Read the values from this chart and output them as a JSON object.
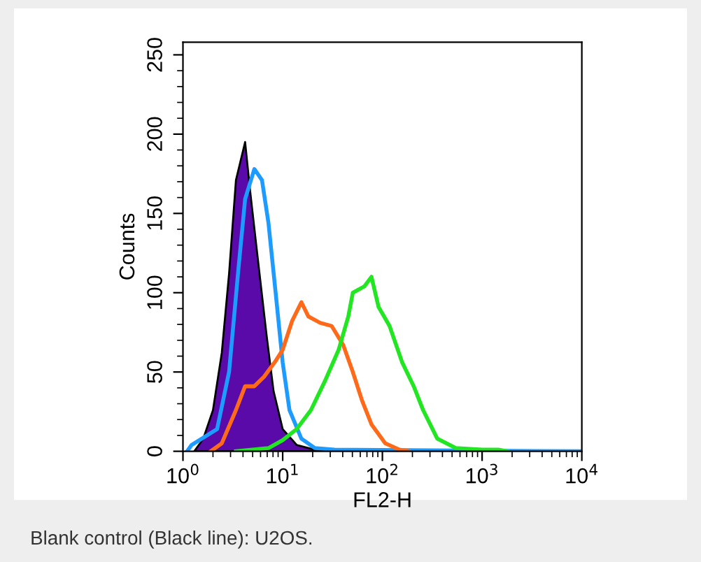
{
  "chart_data": {
    "type": "line",
    "xlabel": "FL2-H",
    "ylabel": "Counts",
    "log": "x",
    "grid": false,
    "marker": "none",
    "line_style": "solid",
    "xlim": [
      1,
      10000
    ],
    "ylim": [
      0,
      258
    ],
    "xticks": [
      {
        "value": 1,
        "label": "10$^{0}$"
      },
      {
        "value": 10,
        "label": "10$^{1}$"
      },
      {
        "value": 100,
        "label": "10$^{2}$"
      },
      {
        "value": 1000,
        "label": "10$^{3}$"
      },
      {
        "value": 10000,
        "label": "10$^{4}$"
      }
    ],
    "yticks": [
      0,
      50,
      100,
      150,
      200,
      250
    ],
    "annotations": [
      "Blank control (Black line): U2OS."
    ],
    "series": [
      {
        "type": "area",
        "color": "#5a0aa8",
        "x": [
          1.3,
          1.6,
          2.0,
          2.45,
          2.9,
          3.4,
          4.2,
          4.7,
          5.5,
          6.9,
          8.1,
          10,
          13.8,
          21,
          28
        ],
        "values": [
          0,
          8,
          26,
          62,
          112,
          171,
          195,
          165,
          127,
          73,
          38,
          14,
          4,
          1,
          0
        ]
      },
      {
        "color": "#1e9bff",
        "x": [
          1.1,
          1.22,
          2.2,
          2.9,
          3.6,
          4.2,
          5.2,
          6.2,
          7.2,
          8.5,
          10,
          11.7,
          15.4,
          21,
          33,
          10000
        ],
        "values": [
          0,
          4,
          14,
          50,
          115,
          159,
          178,
          171,
          144,
          100,
          56,
          26,
          8,
          2,
          1,
          0
        ]
      },
      {
        "color": "#ff6a1a",
        "x": [
          1.9,
          2.45,
          3.4,
          4.2,
          5.2,
          6.5,
          8.5,
          10,
          12.4,
          15.4,
          18.1,
          23.8,
          31,
          40.5,
          50.5,
          62.5,
          77.7,
          107,
          148,
          185
        ],
        "values": [
          0,
          5,
          26,
          41,
          41,
          47,
          57,
          64,
          82,
          94,
          85,
          81,
          79,
          67,
          50,
          32,
          17,
          5,
          1,
          0
        ]
      },
      {
        "color": "#22e622",
        "x": [
          3.4,
          7.2,
          10,
          13.8,
          19.2,
          26.4,
          36.4,
          45.5,
          50.5,
          66,
          77.7,
          91.5,
          118,
          158,
          206,
          256,
          355,
          545,
          1000,
          1450,
          1800
        ],
        "values": [
          0,
          2,
          7,
          14,
          26,
          44,
          64,
          85,
          100,
          104,
          110,
          91,
          79,
          56,
          41,
          26,
          8,
          2,
          1,
          1,
          0
        ]
      }
    ]
  }
}
